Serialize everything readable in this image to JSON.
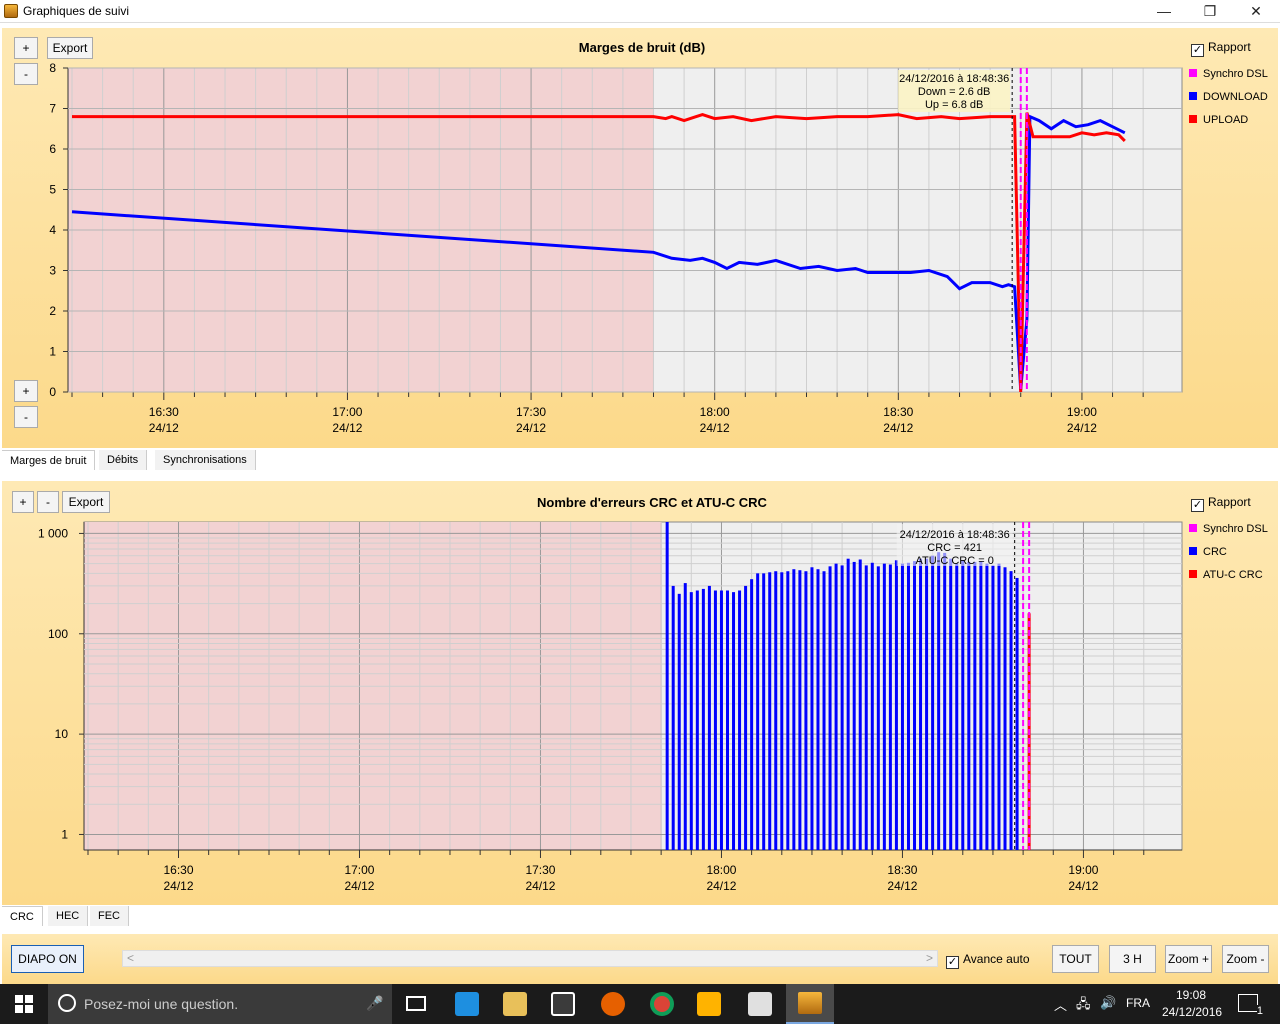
{
  "window": {
    "title": "Graphiques de suivi",
    "minimize": "—",
    "restore": "❐",
    "close": "✕"
  },
  "noise_panel": {
    "title": "Marges de bruit (dB)",
    "plus": "+",
    "minus": "-",
    "export": "Export",
    "rapport": "Rapport",
    "legend": [
      {
        "name": "Synchro DSL",
        "color": "#ff00ff"
      },
      {
        "name": "DOWNLOAD",
        "color": "#0000ff"
      },
      {
        "name": "UPLOAD",
        "color": "#ff0000"
      }
    ],
    "tooltip": {
      "line1": "24/12/2016 à 18:48:36",
      "line2": "Down = 2.6 dB",
      "line3": "Up = 6.8 dB"
    },
    "tabs": [
      "Marges de bruit",
      "Débits",
      "Synchronisations"
    ]
  },
  "crc_panel": {
    "title": "Nombre d'erreurs CRC et ATU-C CRC",
    "plus": "+",
    "minus": "-",
    "export": "Export",
    "rapport": "Rapport",
    "legend": [
      {
        "name": "Synchro DSL",
        "color": "#ff00ff"
      },
      {
        "name": "CRC",
        "color": "#0000ff"
      },
      {
        "name": "ATU-C CRC",
        "color": "#ff0000"
      }
    ],
    "tooltip": {
      "line1": "24/12/2016 à 18:48:36",
      "line2": "CRC = 421",
      "line3": "ATU-C CRC = 0"
    },
    "tabs": [
      "CRC",
      "HEC",
      "FEC"
    ]
  },
  "chart_data": [
    {
      "type": "line",
      "title": "Marges de bruit (dB)",
      "ylim": [
        0,
        8
      ],
      "y_ticks": [
        "0",
        "1",
        "2",
        "3",
        "4",
        "5",
        "6",
        "7",
        "8"
      ],
      "x_ticks": [
        {
          "time": "16:30",
          "date": "24/12"
        },
        {
          "time": "17:00",
          "date": "24/12"
        },
        {
          "time": "17:30",
          "date": "24/12"
        },
        {
          "time": "18:00",
          "date": "24/12"
        },
        {
          "time": "18:30",
          "date": "24/12"
        },
        {
          "time": "19:00",
          "date": "24/12"
        }
      ],
      "shaded_region": {
        "from": "16:15",
        "to": "17:50"
      },
      "cursor_time": "18:48:36",
      "sync_marks": [
        "18:50",
        "18:51"
      ],
      "series": [
        {
          "name": "DOWNLOAD",
          "color": "#0000ff",
          "points": [
            [
              "16:15",
              4.45
            ],
            [
              "17:50",
              3.45
            ],
            [
              "17:53",
              3.3
            ],
            [
              "17:56",
              3.25
            ],
            [
              "17:58",
              3.3
            ],
            [
              "18:00",
              3.2
            ],
            [
              "18:02",
              3.05
            ],
            [
              "18:04",
              3.2
            ],
            [
              "18:07",
              3.15
            ],
            [
              "18:10",
              3.25
            ],
            [
              "18:14",
              3.05
            ],
            [
              "18:17",
              3.1
            ],
            [
              "18:20",
              3.0
            ],
            [
              "18:23",
              3.05
            ],
            [
              "18:25",
              2.95
            ],
            [
              "18:30",
              2.95
            ],
            [
              "18:32",
              2.95
            ],
            [
              "18:35",
              3.0
            ],
            [
              "18:38",
              2.85
            ],
            [
              "18:40",
              2.55
            ],
            [
              "18:42",
              2.7
            ],
            [
              "18:45",
              2.7
            ],
            [
              "18:47",
              2.6
            ],
            [
              "18:48",
              2.65
            ],
            [
              "18:49",
              2.6
            ],
            [
              "18:50",
              0.05
            ],
            [
              "18:51",
              1.8
            ],
            [
              "18:51:30",
              6.8
            ],
            [
              "18:53",
              6.7
            ],
            [
              "18:55",
              6.5
            ],
            [
              "18:57",
              6.7
            ],
            [
              "18:59",
              6.55
            ],
            [
              "19:01",
              6.6
            ],
            [
              "19:03",
              6.7
            ],
            [
              "19:05",
              6.55
            ],
            [
              "19:07",
              6.4
            ]
          ]
        },
        {
          "name": "UPLOAD",
          "color": "#ff0000",
          "points": [
            [
              "16:15",
              6.8
            ],
            [
              "17:50",
              6.8
            ],
            [
              "17:52",
              6.75
            ],
            [
              "17:53",
              6.8
            ],
            [
              "17:55",
              6.7
            ],
            [
              "17:57",
              6.8
            ],
            [
              "17:58",
              6.85
            ],
            [
              "18:00",
              6.75
            ],
            [
              "18:03",
              6.8
            ],
            [
              "18:06",
              6.7
            ],
            [
              "18:10",
              6.8
            ],
            [
              "18:15",
              6.75
            ],
            [
              "18:20",
              6.8
            ],
            [
              "18:25",
              6.8
            ],
            [
              "18:30",
              6.85
            ],
            [
              "18:33",
              6.75
            ],
            [
              "18:37",
              6.8
            ],
            [
              "18:40",
              6.75
            ],
            [
              "18:45",
              6.8
            ],
            [
              "18:48",
              6.8
            ],
            [
              "18:49",
              6.8
            ],
            [
              "18:50",
              0.0
            ],
            [
              "18:51",
              6.9
            ],
            [
              "18:52",
              6.3
            ],
            [
              "18:55",
              6.3
            ],
            [
              "18:58",
              6.3
            ],
            [
              "19:00",
              6.4
            ],
            [
              "19:02",
              6.35
            ],
            [
              "19:04",
              6.4
            ],
            [
              "19:06",
              6.35
            ],
            [
              "19:07",
              6.2
            ]
          ]
        }
      ]
    },
    {
      "type": "bar",
      "title": "Nombre d'erreurs CRC et ATU-C CRC",
      "y_scale": "log",
      "ylim": [
        0.7,
        1300
      ],
      "y_ticks": [
        "1",
        "10",
        "100",
        "1 000"
      ],
      "x_ticks": [
        {
          "time": "16:30",
          "date": "24/12"
        },
        {
          "time": "17:00",
          "date": "24/12"
        },
        {
          "time": "17:30",
          "date": "24/12"
        },
        {
          "time": "18:00",
          "date": "24/12"
        },
        {
          "time": "18:30",
          "date": "24/12"
        },
        {
          "time": "19:00",
          "date": "24/12"
        }
      ],
      "shaded_region": {
        "from": "16:15",
        "to": "17:50"
      },
      "cursor_time": "18:48:36",
      "sync_marks": [
        "18:50",
        "18:51"
      ],
      "series": [
        {
          "name": "CRC",
          "color": "#0000ff",
          "start": "17:51",
          "step_minutes": 1,
          "values": [
            1300,
            300,
            250,
            320,
            260,
            270,
            280,
            300,
            270,
            270,
            270,
            260,
            270,
            300,
            350,
            400,
            400,
            410,
            420,
            410,
            420,
            440,
            430,
            420,
            460,
            440,
            420,
            470,
            500,
            480,
            560,
            520,
            550,
            480,
            510,
            470,
            500,
            490,
            540,
            500,
            510,
            530,
            560,
            560,
            600,
            650,
            640,
            560,
            500,
            540,
            520,
            520,
            530,
            500,
            480,
            500,
            460,
            421,
            360
          ]
        },
        {
          "name": "ATU-C CRC",
          "color": "#ff0000",
          "start": "18:51",
          "step_minutes": 1,
          "values": [
            160
          ]
        }
      ]
    }
  ],
  "bottom": {
    "diapo": "DIAPO ON",
    "avance": "Avance auto",
    "tout": "TOUT",
    "three_h": "3 H",
    "zoom_plus": "Zoom +",
    "zoom_minus": "Zoom -",
    "scroll_left": "<",
    "scroll_right": ">"
  },
  "taskbar": {
    "search_placeholder": "Posez-moi une question.",
    "lang": "FRA",
    "time": "19:08",
    "date": "24/12/2016",
    "notif_count": "1"
  }
}
